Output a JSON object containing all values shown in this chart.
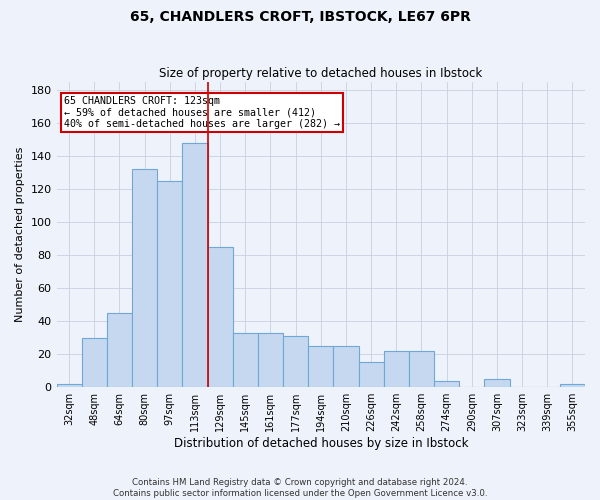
{
  "title_line1": "65, CHANDLERS CROFT, IBSTOCK, LE67 6PR",
  "title_line2": "Size of property relative to detached houses in Ibstock",
  "xlabel": "Distribution of detached houses by size in Ibstock",
  "ylabel": "Number of detached properties",
  "categories": [
    "32sqm",
    "48sqm",
    "64sqm",
    "80sqm",
    "97sqm",
    "113sqm",
    "129sqm",
    "145sqm",
    "161sqm",
    "177sqm",
    "194sqm",
    "210sqm",
    "226sqm",
    "242sqm",
    "258sqm",
    "274sqm",
    "290sqm",
    "307sqm",
    "323sqm",
    "339sqm",
    "355sqm"
  ],
  "values": [
    2,
    30,
    45,
    132,
    125,
    148,
    85,
    33,
    33,
    31,
    25,
    25,
    15,
    22,
    22,
    4,
    0,
    5,
    0,
    0,
    2
  ],
  "bar_color": "#c5d8f0",
  "bar_edge_color": "#6fa8d5",
  "vline_index": 6,
  "vline_color": "#cc0000",
  "annotation_text": "65 CHANDLERS CROFT: 123sqm\n← 59% of detached houses are smaller (412)\n40% of semi-detached houses are larger (282) →",
  "annotation_box_color": "#ffffff",
  "annotation_box_edge": "#cc0000",
  "ylim": [
    0,
    185
  ],
  "yticks": [
    0,
    20,
    40,
    60,
    80,
    100,
    120,
    140,
    160,
    180
  ],
  "footer_line1": "Contains HM Land Registry data © Crown copyright and database right 2024.",
  "footer_line2": "Contains public sector information licensed under the Open Government Licence v3.0.",
  "background_color": "#eef2fb",
  "grid_color": "#c8cfe0"
}
